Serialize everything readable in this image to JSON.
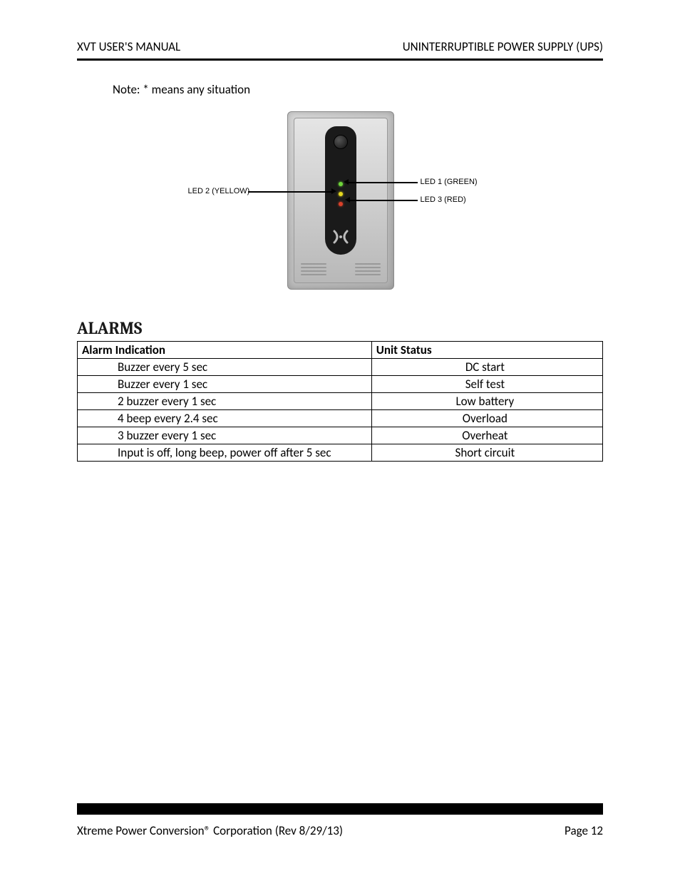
{
  "header": {
    "left": "XVT USER'S MANUAL",
    "right": "UNINTERRUPTIBLE POWER SUPPLY (UPS)"
  },
  "note": "Note: * means any situation",
  "figure": {
    "label_led1": "LED 1 (GREEN)",
    "label_led2": "LED 2 (YELLOW)",
    "label_led3": "LED 3 (RED)",
    "led_colors": {
      "led1": "#6fd43a",
      "led2": "#e6d81f",
      "led3": "#d9412a"
    },
    "device_bg_start": "#d8d8d8",
    "device_bg_end": "#b0b0b0",
    "panel_color": "#1a1a1a"
  },
  "section_title": "ALARMS",
  "table": {
    "columns": [
      "Alarm Indication",
      "Unit Status"
    ],
    "rows": [
      [
        "Buzzer every 5 sec",
        "DC start"
      ],
      [
        "Buzzer every 1 sec",
        "Self test"
      ],
      [
        "2 buzzer every 1 sec",
        "Low battery"
      ],
      [
        "4 beep every 2.4 sec",
        "Overload"
      ],
      [
        "3 buzzer every 1 sec",
        "Overheat"
      ],
      [
        "Input is off, long beep, power off after 5 sec",
        "Short circuit"
      ]
    ],
    "border_color": "#000000",
    "font_size_pt": 12
  },
  "footer": {
    "left": "Xtreme Power Conversion® Corporation (Rev 8/29/13)",
    "right": "Page 12",
    "bar_color": "#000000"
  }
}
